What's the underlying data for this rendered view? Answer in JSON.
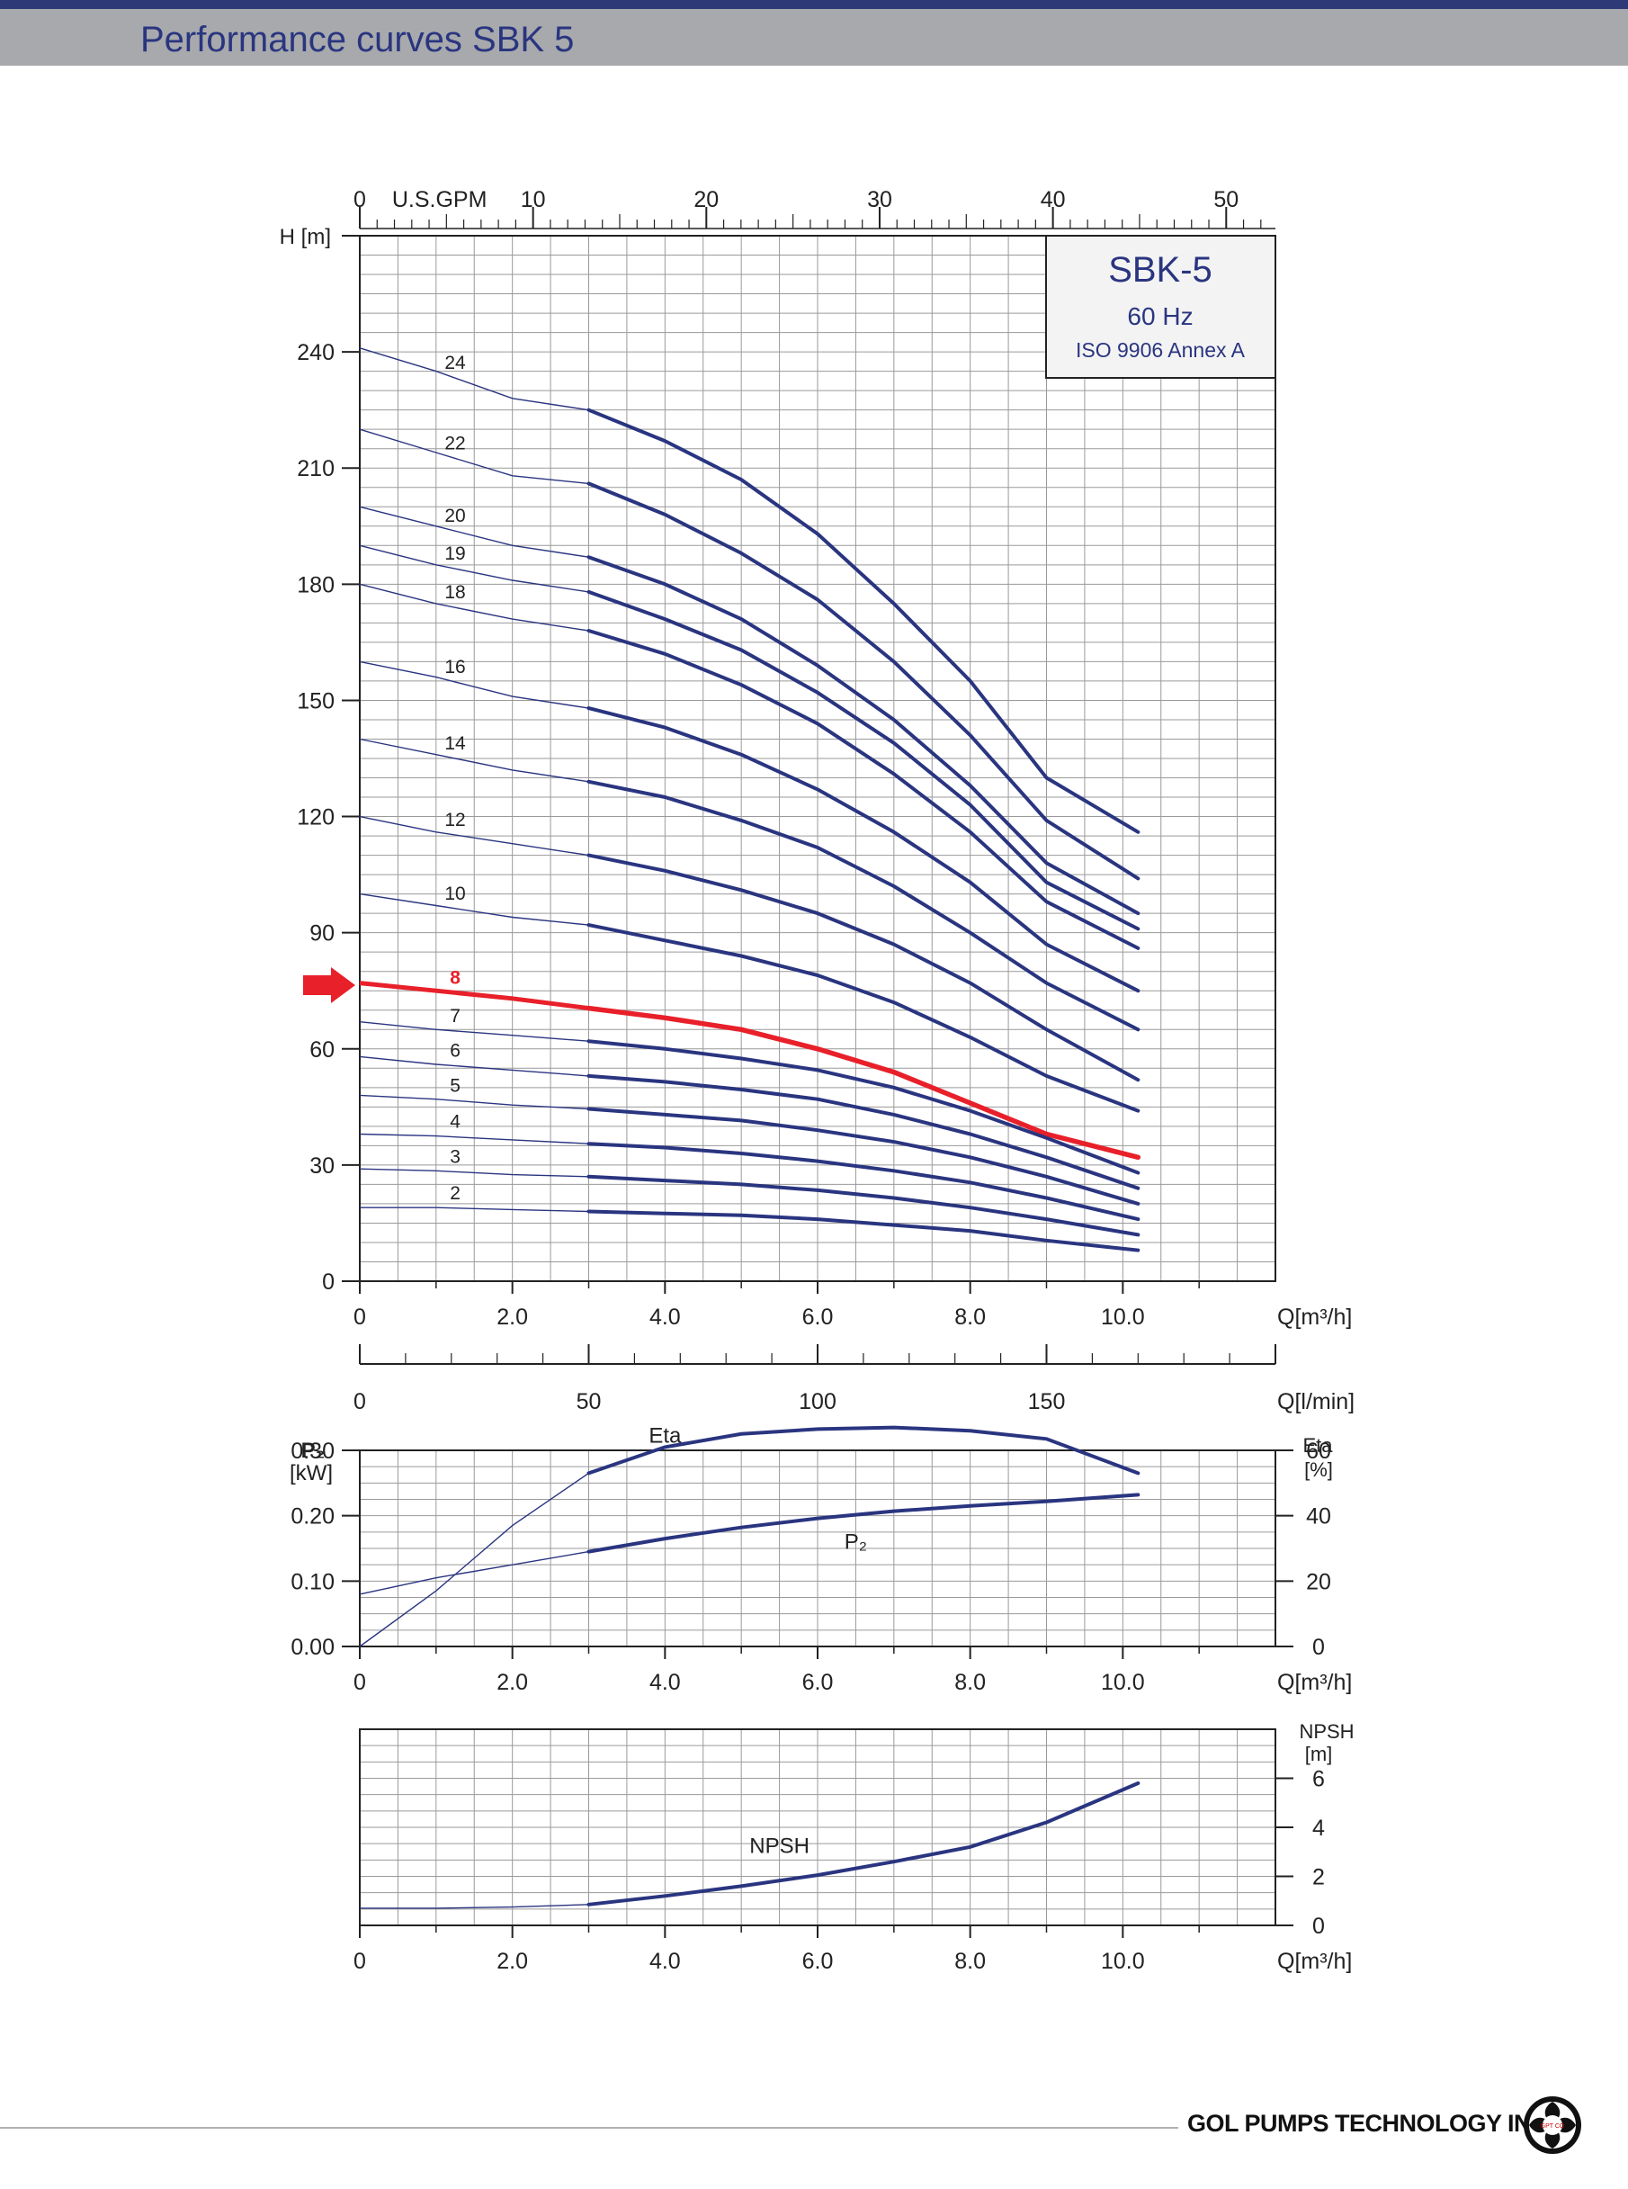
{
  "header": {
    "title": "Performance curves SBK 5"
  },
  "footer": {
    "company": "GOL PUMPS TECHNOLOGY INC",
    "logo_text": "GPT CO"
  },
  "colors": {
    "curve": "#2a3580",
    "highlight": "#e8202a",
    "grid": "#9a9a9a",
    "header_bar": "#a7a9ac",
    "top_bar": "#2e3a77"
  },
  "info_box": {
    "model": "SBK-5",
    "frequency": "60 Hz",
    "standard": "ISO 9906 Annex A"
  },
  "chart_data": [
    {
      "type": "line",
      "id": "head",
      "xlabel": "Q[m³/h]",
      "ylabel": "H [m]",
      "top_axis": {
        "label": "U.S.GPM",
        "ticks": [
          0,
          10,
          20,
          30,
          40,
          50
        ]
      },
      "lpm_axis": {
        "label": "Q[l/min]",
        "ticks": [
          0,
          50,
          100,
          150
        ]
      },
      "xlim": [
        0,
        12
      ],
      "ylim": [
        0,
        270
      ],
      "xticks": [
        "0",
        "2.0",
        "4.0",
        "6.0",
        "8.0",
        "10.0"
      ],
      "yticks": [
        0,
        30,
        60,
        90,
        120,
        150,
        180,
        210,
        240
      ],
      "grid": true,
      "selected_stage": "8",
      "series": [
        {
          "name": "24",
          "points": [
            [
              0,
              241
            ],
            [
              1,
              235
            ],
            [
              2,
              228
            ],
            [
              3,
              225
            ],
            [
              4,
              217
            ],
            [
              5,
              207
            ],
            [
              6,
              193
            ],
            [
              7,
              175
            ],
            [
              8,
              155
            ],
            [
              9,
              130
            ],
            [
              10.2,
              116
            ]
          ]
        },
        {
          "name": "22",
          "points": [
            [
              0,
              220
            ],
            [
              1,
              214
            ],
            [
              2,
              208
            ],
            [
              3,
              206
            ],
            [
              4,
              198
            ],
            [
              5,
              188
            ],
            [
              6,
              176
            ],
            [
              7,
              160
            ],
            [
              8,
              141
            ],
            [
              9,
              119
            ],
            [
              10.2,
              104
            ]
          ]
        },
        {
          "name": "20",
          "points": [
            [
              0,
              200
            ],
            [
              1,
              195
            ],
            [
              2,
              190
            ],
            [
              3,
              187
            ],
            [
              4,
              180
            ],
            [
              5,
              171
            ],
            [
              6,
              159
            ],
            [
              7,
              145
            ],
            [
              8,
              128
            ],
            [
              9,
              108
            ],
            [
              10.2,
              95
            ]
          ]
        },
        {
          "name": "19",
          "points": [
            [
              0,
              190
            ],
            [
              1,
              185
            ],
            [
              2,
              181
            ],
            [
              3,
              178
            ],
            [
              4,
              171
            ],
            [
              5,
              163
            ],
            [
              6,
              152
            ],
            [
              7,
              139
            ],
            [
              8,
              123
            ],
            [
              9,
              103
            ],
            [
              10.2,
              91
            ]
          ]
        },
        {
          "name": "18",
          "points": [
            [
              0,
              180
            ],
            [
              1,
              175
            ],
            [
              2,
              171
            ],
            [
              3,
              168
            ],
            [
              4,
              162
            ],
            [
              5,
              154
            ],
            [
              6,
              144
            ],
            [
              7,
              131
            ],
            [
              8,
              116
            ],
            [
              9,
              98
            ],
            [
              10.2,
              86
            ]
          ]
        },
        {
          "name": "16",
          "points": [
            [
              0,
              160
            ],
            [
              1,
              156
            ],
            [
              2,
              151
            ],
            [
              3,
              148
            ],
            [
              4,
              143
            ],
            [
              5,
              136
            ],
            [
              6,
              127
            ],
            [
              7,
              116
            ],
            [
              8,
              103
            ],
            [
              9,
              87
            ],
            [
              10.2,
              75
            ]
          ]
        },
        {
          "name": "14",
          "points": [
            [
              0,
              140
            ],
            [
              1,
              136
            ],
            [
              2,
              132
            ],
            [
              3,
              129
            ],
            [
              4,
              125
            ],
            [
              5,
              119
            ],
            [
              6,
              112
            ],
            [
              7,
              102
            ],
            [
              8,
              90
            ],
            [
              9,
              77
            ],
            [
              10.2,
              65
            ]
          ]
        },
        {
          "name": "12",
          "points": [
            [
              0,
              120
            ],
            [
              1,
              116
            ],
            [
              2,
              113
            ],
            [
              3,
              110
            ],
            [
              4,
              106
            ],
            [
              5,
              101
            ],
            [
              6,
              95
            ],
            [
              7,
              87
            ],
            [
              8,
              77
            ],
            [
              9,
              65
            ],
            [
              10.2,
              52
            ]
          ]
        },
        {
          "name": "10",
          "points": [
            [
              0,
              100
            ],
            [
              1,
              97
            ],
            [
              2,
              94
            ],
            [
              3,
              92
            ],
            [
              4,
              88
            ],
            [
              5,
              84
            ],
            [
              6,
              79
            ],
            [
              7,
              72
            ],
            [
              8,
              63
            ],
            [
              9,
              53
            ],
            [
              10.2,
              44
            ]
          ]
        },
        {
          "name": "8",
          "points": [
            [
              0,
              77
            ],
            [
              1,
              75
            ],
            [
              2,
              73
            ],
            [
              3,
              70.5
            ],
            [
              4,
              68
            ],
            [
              5,
              65
            ],
            [
              6,
              60
            ],
            [
              7,
              54
            ],
            [
              8,
              46
            ],
            [
              9,
              38
            ],
            [
              10.2,
              32
            ]
          ]
        },
        {
          "name": "7",
          "points": [
            [
              0,
              67
            ],
            [
              1,
              65
            ],
            [
              2,
              63.5
            ],
            [
              3,
              62
            ],
            [
              4,
              60
            ],
            [
              5,
              57.5
            ],
            [
              6,
              54.5
            ],
            [
              7,
              50
            ],
            [
              8,
              44
            ],
            [
              9,
              37
            ],
            [
              10.2,
              28
            ]
          ]
        },
        {
          "name": "6",
          "points": [
            [
              0,
              58
            ],
            [
              1,
              56
            ],
            [
              2,
              54.5
            ],
            [
              3,
              53
            ],
            [
              4,
              51.5
            ],
            [
              5,
              49.5
            ],
            [
              6,
              47
            ],
            [
              7,
              43
            ],
            [
              8,
              38
            ],
            [
              9,
              32
            ],
            [
              10.2,
              24
            ]
          ]
        },
        {
          "name": "5",
          "points": [
            [
              0,
              48
            ],
            [
              1,
              47
            ],
            [
              2,
              45.5
            ],
            [
              3,
              44.5
            ],
            [
              4,
              43
            ],
            [
              5,
              41.5
            ],
            [
              6,
              39
            ],
            [
              7,
              36
            ],
            [
              8,
              32
            ],
            [
              9,
              27
            ],
            [
              10.2,
              20
            ]
          ]
        },
        {
          "name": "4",
          "points": [
            [
              0,
              38
            ],
            [
              1,
              37.5
            ],
            [
              2,
              36.5
            ],
            [
              3,
              35.5
            ],
            [
              4,
              34.5
            ],
            [
              5,
              33
            ],
            [
              6,
              31
            ],
            [
              7,
              28.5
            ],
            [
              8,
              25.5
            ],
            [
              9,
              21.5
            ],
            [
              10.2,
              16
            ]
          ]
        },
        {
          "name": "3",
          "points": [
            [
              0,
              29
            ],
            [
              1,
              28.5
            ],
            [
              2,
              27.5
            ],
            [
              3,
              27
            ],
            [
              4,
              26
            ],
            [
              5,
              25
            ],
            [
              6,
              23.5
            ],
            [
              7,
              21.5
            ],
            [
              8,
              19
            ],
            [
              9,
              16
            ],
            [
              10.2,
              12
            ]
          ]
        },
        {
          "name": "2",
          "points": [
            [
              0,
              19
            ],
            [
              1,
              19
            ],
            [
              2,
              18.5
            ],
            [
              3,
              18
            ],
            [
              4,
              17.5
            ],
            [
              5,
              17
            ],
            [
              6,
              16
            ],
            [
              7,
              14.5
            ],
            [
              8,
              13
            ],
            [
              9,
              10.5
            ],
            [
              10.2,
              8
            ]
          ]
        }
      ]
    },
    {
      "type": "line",
      "id": "power_eta",
      "xlabel": "Q[m³/h]",
      "ylabel_left": "P₂ [kW]",
      "ylabel_right": "Eta [%]",
      "xlim": [
        0,
        12
      ],
      "ylim_left": [
        0,
        0.3
      ],
      "ylim_right": [
        0,
        60
      ],
      "yticks_left": [
        "0.00",
        "0.10",
        "0.20",
        "0.30"
      ],
      "yticks_right": [
        "0",
        "20",
        "40",
        "60"
      ],
      "xticks": [
        "0",
        "2.0",
        "4.0",
        "6.0",
        "8.0",
        "10.0"
      ],
      "grid": true,
      "series": [
        {
          "name": "Eta",
          "axis": "right",
          "points": [
            [
              0,
              0
            ],
            [
              1,
              17
            ],
            [
              2,
              37
            ],
            [
              3,
              53
            ],
            [
              4,
              61
            ],
            [
              5,
              65
            ],
            [
              6,
              66.5
            ],
            [
              7,
              67
            ],
            [
              8,
              66
            ],
            [
              9,
              63.5
            ],
            [
              10.2,
              53
            ]
          ]
        },
        {
          "name": "P₂",
          "axis": "left",
          "points": [
            [
              0,
              0.08
            ],
            [
              1,
              0.105
            ],
            [
              2,
              0.125
            ],
            [
              3,
              0.145
            ],
            [
              4,
              0.165
            ],
            [
              5,
              0.182
            ],
            [
              6,
              0.196
            ],
            [
              7,
              0.207
            ],
            [
              8,
              0.215
            ],
            [
              9,
              0.222
            ],
            [
              10.2,
              0.232
            ]
          ]
        }
      ]
    },
    {
      "type": "line",
      "id": "npsh",
      "xlabel": "Q[m³/h]",
      "ylabel_right": "NPSH [m]",
      "xlim": [
        0,
        12
      ],
      "ylim": [
        0,
        8
      ],
      "yticks_right": [
        "0",
        "2",
        "4",
        "6"
      ],
      "xticks": [
        "0",
        "2.0",
        "4.0",
        "6.0",
        "8.0",
        "10.0"
      ],
      "grid": true,
      "series": [
        {
          "name": "NPSH",
          "points": [
            [
              0,
              0.7
            ],
            [
              1,
              0.7
            ],
            [
              2,
              0.75
            ],
            [
              3,
              0.85
            ],
            [
              4,
              1.2
            ],
            [
              5,
              1.6
            ],
            [
              6,
              2.05
            ],
            [
              7,
              2.6
            ],
            [
              8,
              3.2
            ],
            [
              9,
              4.2
            ],
            [
              10.2,
              5.8
            ]
          ]
        }
      ]
    }
  ]
}
